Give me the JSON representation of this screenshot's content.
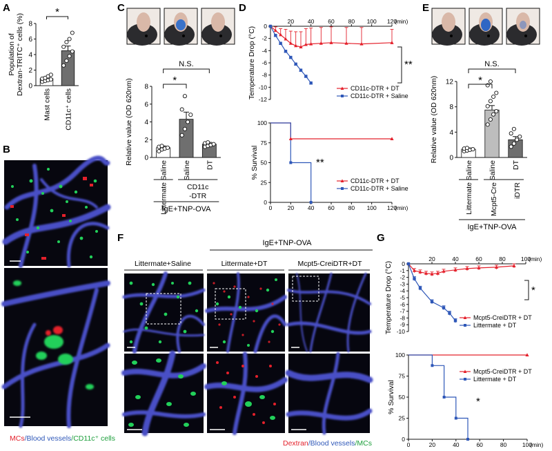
{
  "panel_letters": {
    "A": "A",
    "B": "B",
    "C": "C",
    "D": "D",
    "E": "E",
    "F": "F",
    "G": "G"
  },
  "captions": {
    "b": [
      "MCs",
      "/Blood vessels",
      "/CD11c⁺ cells"
    ],
    "f": [
      "Dextran",
      "/Blood vessels",
      "/MCs"
    ]
  },
  "f_headers": {
    "top": "IgE+TNP-OVA",
    "cols": [
      "Littermate+Saline",
      "Littermate+DT",
      "Mcpt5-CreiDTR+DT"
    ]
  },
  "significance": {
    "a": "*",
    "c_ns": "N.S.",
    "c_star": "*",
    "d_top": "**",
    "d_bottom": "**",
    "e_ns": "N.S.",
    "e_star": "*",
    "g_top": "*",
    "g_bottom": "*"
  },
  "group_labels": {
    "c": {
      "littermate": "Littermate",
      "genotype_line1": "CD11c",
      "genotype_line2": "-DTR",
      "treatment": "IgE+TNP-OVA"
    },
    "e": {
      "littermate": "Littermate",
      "genotype_line1": "Mcpt5-Cre",
      "genotype_line2": "iDTR",
      "treatment": "IgE+TNP-OVA"
    }
  },
  "colors": {
    "red": "#e4202b",
    "blue": "#2e57b8",
    "bar_gray": "#6f6f6f",
    "bar_light": "#bdbdbd",
    "micro_bg": "#06060f",
    "vessel": "#4a4fc6",
    "green": "#22d05a"
  },
  "chart_data": [
    {
      "id": "A",
      "type": "bar",
      "categories": [
        "Mast cells",
        "CD11c⁺ cells"
      ],
      "values": [
        0.9,
        4.5
      ],
      "errors": [
        0.2,
        0.6
      ],
      "points": [
        [
          0.5,
          0.6,
          0.7,
          0.8,
          0.9,
          1.0,
          1.2,
          1.4
        ],
        [
          2.6,
          3.2,
          3.8,
          4.4,
          5.0,
          5.6,
          6.0,
          6.8
        ]
      ],
      "ylabel_lines": [
        "Population of",
        "Dextran-TRITC⁺ cells (%)"
      ],
      "ylim": [
        0,
        8
      ],
      "yticks": [
        "0",
        "2",
        "4",
        "6",
        "8"
      ]
    },
    {
      "id": "C",
      "type": "bar",
      "categories": [
        "Saline",
        "Saline",
        "DT"
      ],
      "values": [
        1.1,
        4.3,
        1.5
      ],
      "errors": [
        0.2,
        0.8,
        0.2
      ],
      "points": [
        [
          0.7,
          0.9,
          1.0,
          1.1,
          1.2,
          1.3
        ],
        [
          2.5,
          3.2,
          4.0,
          4.8,
          5.4,
          6.9
        ],
        [
          1.2,
          1.3,
          1.4,
          1.5,
          1.6,
          1.7
        ]
      ],
      "ylabel": "Relative value (OD 620nm)",
      "ylim": [
        0,
        8
      ],
      "yticks": [
        "0",
        "2",
        "4",
        "6",
        "8"
      ]
    },
    {
      "id": "D-temp",
      "type": "line",
      "ylabel": "Temperature Drop (°C)",
      "xticks": [
        "20",
        "40",
        "60",
        "80",
        "100",
        "120"
      ],
      "xunit": "(min)",
      "yticks": [
        "0",
        "-2",
        "-4",
        "-6",
        "-8",
        "-10",
        "-12"
      ],
      "xlim": [
        0,
        120
      ],
      "ylim": [
        -12,
        0
      ],
      "series": [
        {
          "name": "CD11c-DTR + DT",
          "x": [
            0,
            5,
            10,
            15,
            20,
            25,
            30,
            35,
            40,
            50,
            60,
            75,
            90,
            120
          ],
          "y": [
            0,
            -0.7,
            -1.4,
            -2.1,
            -2.8,
            -3.2,
            -3.4,
            -3.0,
            -2.9,
            -2.8,
            -2.7,
            -2.8,
            -2.9,
            -2.7
          ],
          "err": [
            0,
            0.6,
            1.0,
            1.6,
            2.0,
            2.3,
            2.5,
            2.6,
            2.6,
            2.6,
            2.6,
            2.6,
            2.7,
            2.2
          ]
        },
        {
          "name": "CD11c-DTR + Saline",
          "x": [
            0,
            5,
            10,
            15,
            20,
            25,
            30,
            35,
            40
          ],
          "y": [
            0,
            -1.5,
            -2.8,
            -4.1,
            -5.1,
            -6.2,
            -7.2,
            -8.2,
            -9.3
          ],
          "err": [
            0,
            0.2,
            0.2,
            0.2,
            0.2,
            0.2,
            0.2,
            0.2,
            0.2
          ]
        }
      ]
    },
    {
      "id": "D-survival",
      "type": "line",
      "ylabel": "% Survival",
      "xticks": [
        "0",
        "20",
        "40",
        "60",
        "80",
        "100",
        "120"
      ],
      "xunit": "(min)",
      "yticks": [
        "0",
        "25",
        "50",
        "75",
        "100"
      ],
      "xlim": [
        0,
        120
      ],
      "ylim": [
        0,
        100
      ],
      "series": [
        {
          "name": "CD11c-DTR + DT",
          "x": [
            0,
            20,
            20,
            120
          ],
          "y": [
            100,
            100,
            80,
            80
          ]
        },
        {
          "name": "CD11c-DTR + Saline",
          "x": [
            0,
            20,
            20,
            30,
            30,
            40,
            40
          ],
          "y": [
            100,
            100,
            50,
            50,
            50,
            50,
            0
          ]
        }
      ]
    },
    {
      "id": "E",
      "type": "bar",
      "categories": [
        "Saline",
        "Saline",
        "DT"
      ],
      "values": [
        1.3,
        7.5,
        2.8
      ],
      "errors": [
        0.2,
        0.7,
        0.5
      ],
      "points": [
        [
          1.0,
          1.1,
          1.2,
          1.3,
          1.4,
          1.5
        ],
        [
          5.2,
          6.0,
          6.8,
          7.3,
          8.1,
          8.9,
          9.6,
          10.2,
          11.4,
          12.0
        ],
        [
          1.7,
          2.2,
          2.8,
          3.3,
          3.8,
          4.5
        ]
      ],
      "ylabel": "Relative value (OD 620nm)",
      "ylim": [
        0,
        12
      ],
      "yticks": [
        "0",
        "4",
        "8",
        "12"
      ]
    },
    {
      "id": "G-temp",
      "type": "line",
      "ylabel": "Temperature Drop (°C)",
      "xticks": [
        "20",
        "40",
        "60",
        "80",
        "100"
      ],
      "xunit": "(min)",
      "yticks": [
        "0",
        "-1",
        "-2",
        "-3",
        "-4",
        "-5",
        "-6",
        "-7",
        "-8",
        "-9",
        "-10"
      ],
      "xlim": [
        0,
        100
      ],
      "ylim": [
        -10,
        0
      ],
      "series": [
        {
          "name": "Mcpt5-CreiDTR + DT",
          "x": [
            0,
            5,
            10,
            15,
            20,
            25,
            30,
            40,
            50,
            60,
            75,
            90
          ],
          "y": [
            0,
            -1.0,
            -1.2,
            -1.4,
            -1.5,
            -1.4,
            -1.1,
            -0.9,
            -0.7,
            -0.6,
            -0.5,
            -0.3
          ],
          "err": [
            0,
            0.3,
            0.3,
            0.3,
            0.3,
            0.3,
            0.3,
            0.3,
            0.3,
            0.3,
            0.3,
            0.3
          ]
        },
        {
          "name": "Littermate + DT",
          "x": [
            0,
            5,
            10,
            20,
            30,
            35,
            40
          ],
          "y": [
            0,
            -2.2,
            -3.6,
            -5.6,
            -6.5,
            -7.3,
            -8.4
          ],
          "err": [
            0,
            0.3,
            0.3,
            0.3,
            0.3,
            0.3,
            0.3
          ]
        }
      ]
    },
    {
      "id": "G-survival",
      "type": "line",
      "ylabel": "% Survival",
      "xticks": [
        "0",
        "20",
        "40",
        "60",
        "80",
        "100"
      ],
      "xunit": "(min)",
      "yticks": [
        "0",
        "25",
        "50",
        "75",
        "100"
      ],
      "xlim": [
        0,
        100
      ],
      "ylim": [
        0,
        100
      ],
      "series": [
        {
          "name": "Mcpt5-CreiDTR + DT",
          "x": [
            0,
            100
          ],
          "y": [
            100,
            100
          ]
        },
        {
          "name": "Littermate + DT",
          "x": [
            0,
            20,
            20,
            30,
            30,
            40,
            40,
            50,
            50
          ],
          "y": [
            100,
            100,
            87.5,
            87.5,
            50,
            50,
            25,
            25,
            0
          ]
        }
      ]
    }
  ]
}
